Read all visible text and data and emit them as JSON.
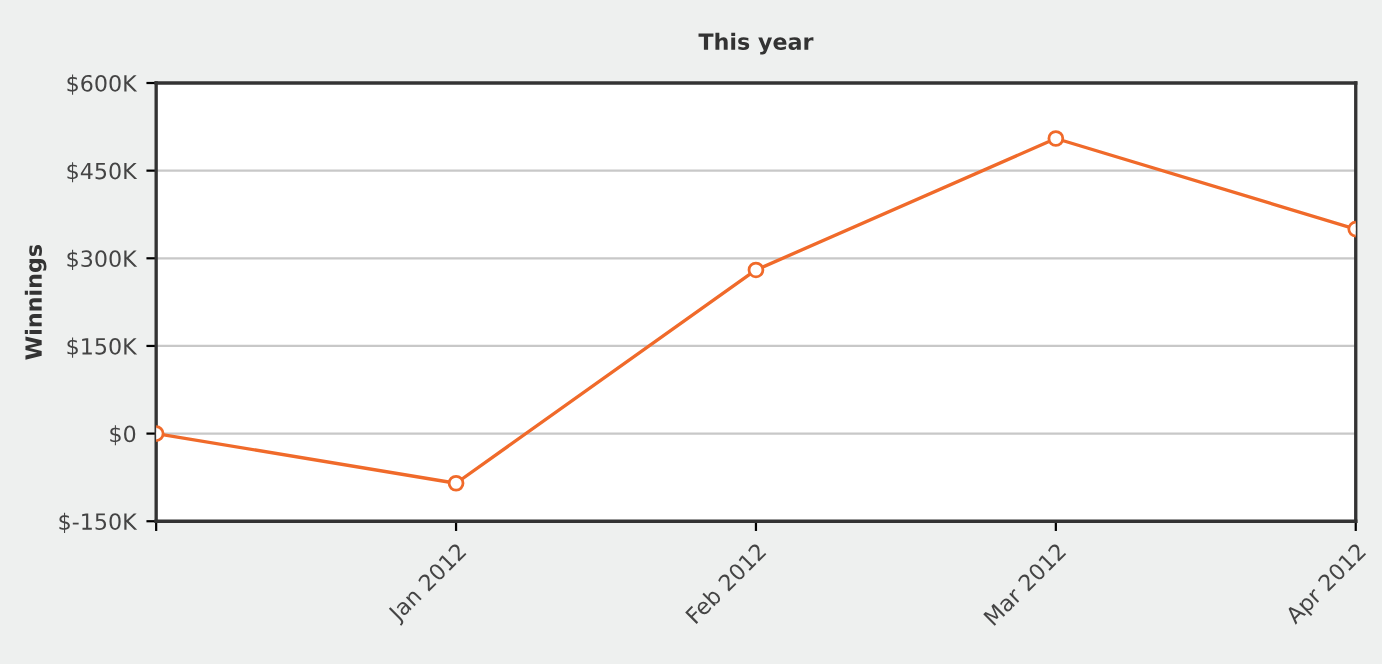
{
  "chart_data": {
    "type": "line",
    "title": "This year",
    "ylabel": "Winnings",
    "categories": [
      null,
      "Jan 2012",
      "Feb 2012",
      "Mar 2012",
      "Apr 2012"
    ],
    "series": [
      {
        "color": "#f06a2a",
        "values": [
          0,
          -85,
          280,
          505,
          350
        ]
      }
    ],
    "ylim": [
      -150,
      600
    ],
    "yticks": [
      {
        "value": -150,
        "label": "$-150K"
      },
      {
        "value": 0,
        "label": "$0"
      },
      {
        "value": 150,
        "label": "$150K"
      },
      {
        "value": 300,
        "label": "$300K"
      },
      {
        "value": 450,
        "label": "$450K"
      },
      {
        "value": 600,
        "label": "$600K"
      }
    ],
    "grid": "y",
    "marker": "circle",
    "line_style": "solid"
  }
}
